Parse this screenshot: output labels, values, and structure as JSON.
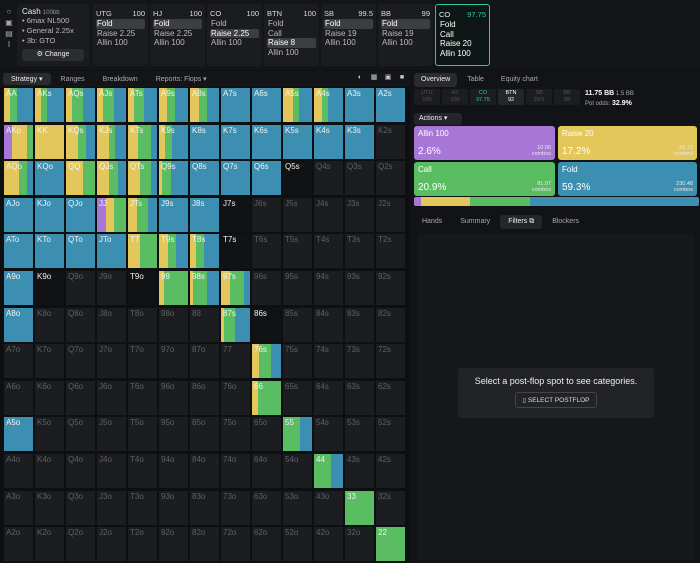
{
  "colors": {
    "allin": "#a876d6",
    "raise": "#e3c75a",
    "call": "#5bbd62",
    "fold": "#3c8fb0"
  },
  "sidebar_icons": [
    "undo-icon",
    "save-icon",
    "play-icon",
    "text-icon"
  ],
  "sidebar_glyphs": [
    "○",
    "▣",
    "▤",
    "I"
  ],
  "game": {
    "title": "Cash",
    "stack": "100bb",
    "lines": [
      "• 6max NL500",
      "• General 2.25x",
      "• 3b: GTO"
    ],
    "change_label": "⚙ Change"
  },
  "positions": [
    {
      "name": "UTG",
      "stack": "100",
      "actions": [
        "Fold",
        "Raise 2.25",
        "Allin 100"
      ],
      "sel": 0
    },
    {
      "name": "HJ",
      "stack": "100",
      "actions": [
        "Fold",
        "Raise 2.25",
        "Allin 100"
      ],
      "sel": 0
    },
    {
      "name": "CO",
      "stack": "100",
      "actions": [
        "Fold",
        "Raise 2.25",
        "Allin 100"
      ],
      "sel": 1
    },
    {
      "name": "BTN",
      "stack": "100",
      "actions": [
        "Fold",
        "Call",
        "Raise 8",
        "Allin 100"
      ],
      "sel": 2
    },
    {
      "name": "SB",
      "stack": "99.5",
      "actions": [
        "Fold",
        "Raise 19",
        "Allin 100"
      ],
      "sel": 0
    },
    {
      "name": "BB",
      "stack": "99",
      "actions": [
        "Fold",
        "Raise 19",
        "Allin 100"
      ],
      "sel": 0
    },
    {
      "name": "CO",
      "stack": "97.75",
      "actions": [
        "Fold",
        "Call",
        "Raise 20",
        "Allin 100"
      ],
      "sel": -1
    }
  ],
  "left_tabs": [
    "Strategy ▾",
    "Ranges",
    "Breakdown",
    "Reports: Flops ▾"
  ],
  "view_icons": [
    "◐",
    "▦",
    "▣",
    "■"
  ],
  "ranks": [
    "A",
    "K",
    "Q",
    "J",
    "T",
    "9",
    "8",
    "7",
    "6",
    "5",
    "4",
    "3",
    "2"
  ],
  "matrix": [
    "r:22,c:22,f:56|r:20,c:20,f:60|r:20,c:40,f:40|r:20,c:40,f:40|r:22,c:34,f:44|r:6,r:20,c:30,f:44|r:30,c:30,f:40|f:100|f:100|r:34,c:20,f:46|r:28,c:22,f:50|f:100|f:100",
    "a:28,r:52,c:20|r:100|r:40,c:30,f:30|r:40,c:22,f:38|r:34,c:46,f:20|r:20,c:24,f:56|f:100|f:100|f:100|f:100|f:100|f:100|",
    "r:50,c:30,f:20|f:100|r:58,c:42|r:40,c:34,f:26|r:40,c:40,f:20|r:12,c:30,f:58|f:100|f:100|f:100|k:blank|||",
    "f:100|f:100|f:100|a:30,r:30,c:40|r:30,c:40,f:30|f:100|f:100|k:blank|||||",
    "f:100|f:100|f:100|f:100|r:40,c:60|r:30,c:30,f:40|r:20,c:30,f:50|k:blank|||||",
    "f:100|k:blank|||k:blank|r:16,c:84|r:10,c:50,f:40|r:30,c:50,f:20|||||",
    "f:100|||||||r:10,c:40,f:50|k:blank|||||",
    "||||||||r:24,c:42,f:34||||",
    "||||||||r:20,c:80,f:0||||",
    "f:100|||||||||c:60,f:40||||",
    "||||||||||c:60,f:40|||",
    "|||||||||||c:100||",
    "||||||||||||c:100|"
  ],
  "empty_tall": [],
  "right_tabs": [
    "Overview",
    "Table",
    "Equity chart"
  ],
  "pos_chips": [
    {
      "n": "UTG",
      "s": "100"
    },
    {
      "n": "HJ",
      "s": "100"
    },
    {
      "n": "CO",
      "s": "97.75"
    },
    {
      "n": "BTN",
      "s": "92"
    },
    {
      "n": "SB",
      "s": "99.5"
    },
    {
      "n": "BB",
      "s": "99"
    }
  ],
  "pot": {
    "bb": "11.75 BB",
    "eff": "1.5 BB",
    "odds_label": "Pot odds:",
    "odds": "32.9%"
  },
  "actions_label": "Actions ▾",
  "action_boxes": [
    {
      "name": "Allin 100",
      "pct": "2.6%",
      "combos": "10.06",
      "color": "#a876d6"
    },
    {
      "name": "Raise 20",
      "pct": "17.2%",
      "combos": "66.72",
      "color": "#e3c75a"
    },
    {
      "name": "Call",
      "pct": "20.9%",
      "combos": "81.07",
      "color": "#5bbd62"
    },
    {
      "name": "Fold",
      "pct": "59.3%",
      "combos": "230.48",
      "color": "#3c8fb0"
    }
  ],
  "combos_word": "combos",
  "strip": [
    2.6,
    17.2,
    20.9,
    59.3
  ],
  "bottom_tabs": [
    "Hands",
    "Summary",
    "Filters ⧉",
    "Blockers"
  ],
  "message": "Select a post-flop spot to see categories.",
  "message_button": "▯ SELECT POSTFLOP"
}
